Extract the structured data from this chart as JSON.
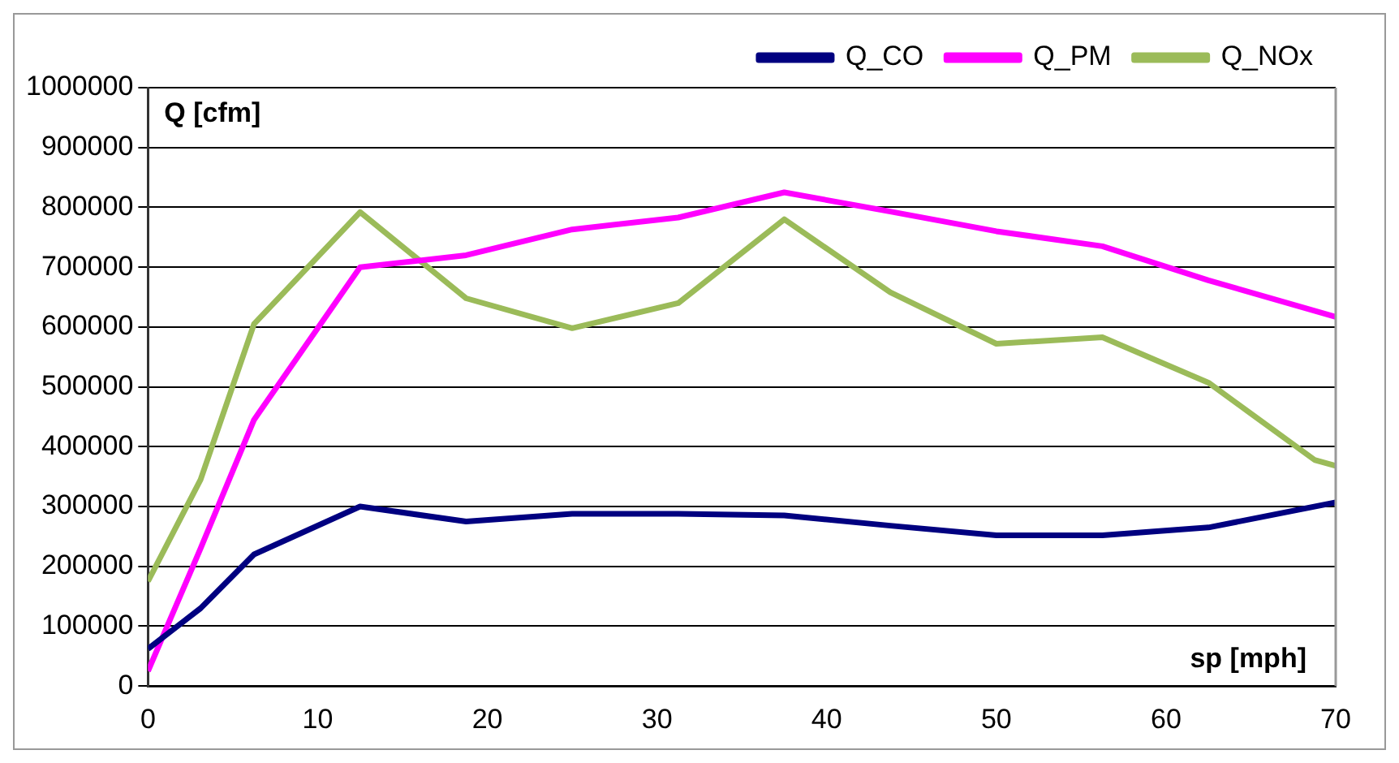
{
  "chart_data": {
    "type": "line",
    "xlabel": "sp [mph]",
    "ylabel": "Q [cfm]",
    "xlim": [
      0,
      70
    ],
    "xticks": [
      0,
      10,
      20,
      30,
      40,
      50,
      60,
      70
    ],
    "ylim": [
      0,
      1000000
    ],
    "yticks": [
      0,
      100000,
      200000,
      300000,
      400000,
      500000,
      600000,
      700000,
      800000,
      900000,
      1000000
    ],
    "grid": "y",
    "legend": "top right",
    "marker": "none",
    "line_style": "solid",
    "series": [
      {
        "name": "Q_CO",
        "color": "#000080",
        "x": [
          0,
          3.1,
          6.25,
          12.5,
          18.75,
          25,
          31.25,
          37.5,
          43.75,
          50,
          56.25,
          62.5,
          70
        ],
        "values": [
          62000,
          130000,
          220000,
          300000,
          275000,
          288000,
          288000,
          285000,
          268000,
          252000,
          252000,
          265000,
          307000
        ]
      },
      {
        "name": "Q_PM",
        "color": "#ff00ff",
        "x": [
          0,
          3.1,
          6.25,
          12.5,
          18.75,
          25,
          31.25,
          37.5,
          43.75,
          50,
          56.25,
          62.5,
          70
        ],
        "values": [
          25000,
          230000,
          445000,
          700000,
          720000,
          763000,
          783000,
          825000,
          793000,
          760000,
          735000,
          678000,
          617000
        ]
      },
      {
        "name": "Q_NOx",
        "color": "#9bbb59",
        "x": [
          0,
          3.1,
          6.25,
          12.5,
          18.75,
          25,
          31.25,
          37.5,
          43.75,
          50,
          56.25,
          62.5,
          68.75,
          70
        ],
        "values": [
          175000,
          345000,
          605000,
          792000,
          648000,
          598000,
          640000,
          780000,
          658000,
          572000,
          583000,
          507000,
          378000,
          368000
        ]
      }
    ]
  }
}
